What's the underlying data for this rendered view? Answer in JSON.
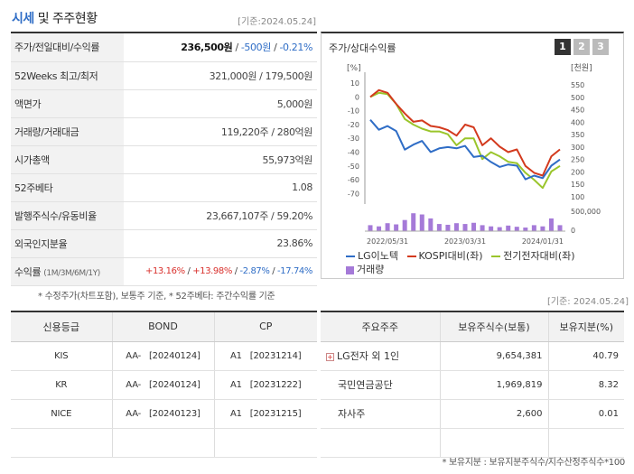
{
  "header": {
    "title_main": "시세",
    "title_rest": "및 주주현황",
    "date": "[기준:2024.05.24]"
  },
  "info": {
    "rows": [
      {
        "label": "주가/전일대비/수익률"
      },
      {
        "label": "52Weeks 최고/최저",
        "value": "321,000원 / 179,500원"
      },
      {
        "label": "액면가",
        "value": "5,000원"
      },
      {
        "label": "거래량/거래대금",
        "value": "119,220주 / 280억원"
      },
      {
        "label": "시가총액",
        "value": "55,973억원"
      },
      {
        "label": "52주베타",
        "value": "1.08"
      },
      {
        "label": "발행주식수/유동비율",
        "value": "23,667,107주 / 59.20%"
      },
      {
        "label": "외국인지분율",
        "value": "23.86%"
      },
      {
        "label": "수익률",
        "sublabel": "(1M/3M/6M/1Y)"
      }
    ],
    "price": "236,500원",
    "change": "-500원",
    "change_pct": "-0.21%",
    "ret_1m": "+13.16%",
    "ret_3m": "+13.98%",
    "ret_6m": "-2.87%",
    "ret_1y": "-17.74%",
    "sep": "/"
  },
  "note1": "* 수정주가(차트포함), 보통주 기준, * 52주베타: 주간수익률 기준",
  "chart_panel": {
    "title": "주가/상대수익률",
    "tabs": [
      "1",
      "2",
      "3"
    ],
    "left_unit": "[%]",
    "right_unit": "[천원]",
    "vol_max_label": "500,000",
    "vol_zero_label": "0",
    "legend": [
      "LG이노텍",
      "KOSPI대비(좌)",
      "전기전자대비(좌)",
      "거래량"
    ],
    "colors": {
      "lg": "#2f6dc6",
      "kospi": "#d33a1e",
      "elec": "#9ac52b",
      "vol": "#a57ad8"
    }
  },
  "chart_data": {
    "type": "line",
    "x_ticks": [
      "2022/05/31",
      "2023/03/31",
      "2024/01/31"
    ],
    "left_axis": {
      "ticks": [
        10,
        0,
        -10,
        -20,
        -30,
        -40,
        -50,
        -60,
        -70
      ],
      "range": [
        -75,
        14
      ]
    },
    "right_axis": {
      "ticks": [
        550,
        500,
        450,
        400,
        350,
        300,
        250,
        200,
        150,
        100
      ],
      "range": [
        85,
        580
      ]
    },
    "series": [
      {
        "name": "LG이노텍",
        "axis": "right",
        "values": [
          410,
          370,
          385,
          365,
          290,
          310,
          325,
          280,
          295,
          300,
          295,
          305,
          260,
          265,
          240,
          220,
          230,
          225,
          170,
          185,
          175,
          225,
          250
        ]
      },
      {
        "name": "KOSPI대비(좌)",
        "axis": "left",
        "values": [
          0,
          5,
          3,
          -5,
          -12,
          -18,
          -17,
          -21,
          -22,
          -24,
          -28,
          -20,
          -22,
          -35,
          -30,
          -36,
          -40,
          -38,
          -50,
          -55,
          -57,
          -43,
          -38
        ]
      },
      {
        "name": "전기전자대비(좌)",
        "axis": "left",
        "values": [
          0,
          3,
          2,
          -5,
          -16,
          -20,
          -23,
          -25,
          -25,
          -27,
          -35,
          -30,
          -30,
          -45,
          -40,
          -43,
          -47,
          -48,
          -55,
          -60,
          -66,
          -54,
          -50
        ]
      },
      {
        "name": "거래량",
        "axis": "volume",
        "values": [
          150000,
          120000,
          200000,
          170000,
          280000,
          450000,
          420000,
          320000,
          180000,
          160000,
          200000,
          180000,
          210000,
          150000,
          120000,
          100000,
          140000,
          110000,
          90000,
          150000,
          120000,
          320000,
          150000
        ]
      }
    ],
    "volume_range": [
      0,
      500000
    ]
  },
  "date2": "[기준: 2024.05.24]",
  "credit": {
    "headers": [
      "신용등급",
      "BOND",
      "CP"
    ],
    "rows": [
      {
        "agency": "KIS",
        "bond": "AA-   [20240124]",
        "cp": "A1   [20231214]"
      },
      {
        "agency": "KR",
        "bond": "AA-   [20240124]",
        "cp": "A1   [20231222]"
      },
      {
        "agency": "NICE",
        "bond": "AA-   [20240123]",
        "cp": "A1   [20231215]"
      }
    ]
  },
  "holders": {
    "headers": [
      "주요주주",
      "보유주식수(보통)",
      "보유지분(%)"
    ],
    "plus": "+",
    "rows": [
      {
        "name": "LG전자 외 1인",
        "shares": "9,654,381",
        "pct": "40.79"
      },
      {
        "name": "국민연금공단",
        "shares": "1,969,819",
        "pct": "8.32"
      },
      {
        "name": "자사주",
        "shares": "2,600",
        "pct": "0.01"
      }
    ]
  },
  "note2": "* 보유지분 : 보유지분주식수/지수산정주식수*100"
}
